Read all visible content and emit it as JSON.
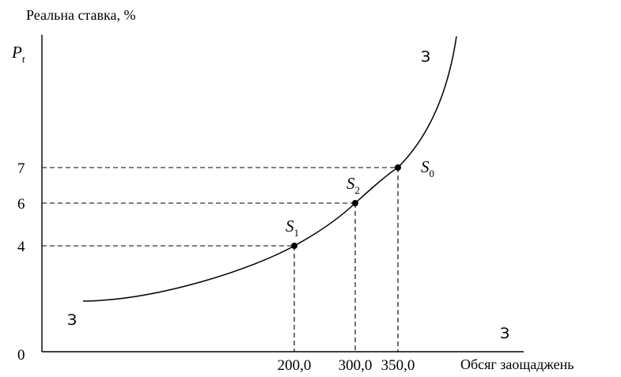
{
  "chart_data": {
    "type": "line",
    "ylabel": "Реальна ставка, %",
    "y_symbol": "P",
    "y_symbol_sub": "t",
    "xlabel": "Обсяг заощаджень",
    "origin_label": "0",
    "curve_labels": {
      "upper": "З",
      "lower": "З",
      "x_axis_end": "З"
    },
    "y_ticks": [
      "7",
      "6",
      "4"
    ],
    "x_ticks": [
      "200,0",
      "300,0",
      "350,0"
    ],
    "points": [
      {
        "name": "S",
        "sub": "1",
        "x": 200,
        "y": 4
      },
      {
        "name": "S",
        "sub": "2",
        "x": 300,
        "y": 6
      },
      {
        "name": "S",
        "sub": "0",
        "x": 350,
        "y": 7
      }
    ],
    "grid": false,
    "guide_lines": "dashed"
  }
}
